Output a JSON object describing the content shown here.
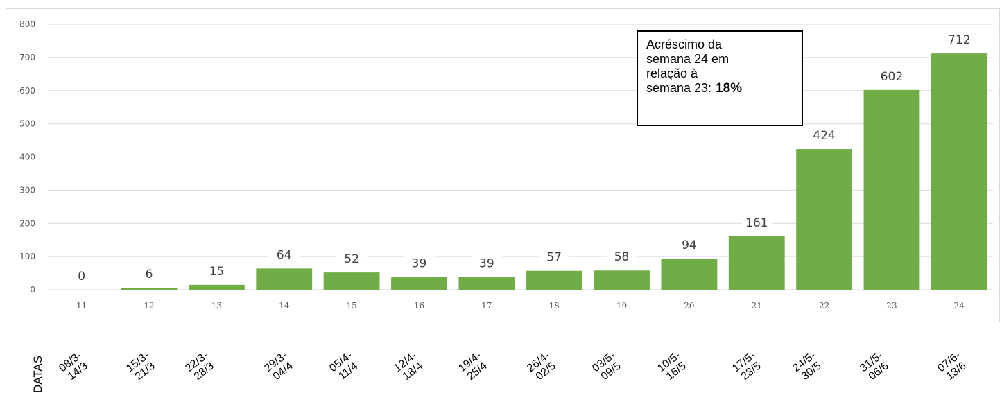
{
  "chart_data": {
    "type": "bar",
    "categories": [
      "11",
      "12",
      "13",
      "14",
      "15",
      "16",
      "17",
      "18",
      "19",
      "20",
      "21",
      "22",
      "23",
      "24"
    ],
    "values": [
      0,
      6,
      15,
      64,
      52,
      39,
      39,
      57,
      58,
      94,
      161,
      424,
      602,
      712
    ],
    "data_labels": [
      "0",
      "6",
      "15",
      "64",
      "52",
      "39",
      "39",
      "57",
      "58",
      "94",
      "161",
      "424",
      "602",
      "712"
    ],
    "ylim": [
      0,
      800
    ],
    "y_ticks": [
      "0",
      "100",
      "200",
      "300",
      "400",
      "500",
      "600",
      "700",
      "800"
    ],
    "grid": true,
    "bar_color": "#70ad47",
    "gridline_color": "#d9d9d9"
  },
  "annotation": {
    "lines": [
      "Acréscimo da",
      "semana 24 em",
      "relação à",
      "semana 23:"
    ],
    "percent": "18%"
  },
  "dates_axis": {
    "label": "DATAS",
    "ranges": [
      [
        "08/3-",
        "14/3"
      ],
      [
        "15/3-",
        "21/3"
      ],
      [
        "22/3-",
        "28/3"
      ],
      [
        "29/3-",
        "04/4"
      ],
      [
        "05/4-",
        "11/4"
      ],
      [
        "12/4-",
        "18/4"
      ],
      [
        "19/4-",
        "25/4"
      ],
      [
        "26/4-",
        "02/5"
      ],
      [
        "03/5-",
        "09/5"
      ],
      [
        "10/5-",
        "16/5"
      ],
      [
        "17/5-",
        "23/5"
      ],
      [
        "24/5-",
        "30/5"
      ],
      [
        "31/5-",
        "06/6"
      ],
      [
        "07/6-",
        "13/6"
      ]
    ]
  }
}
